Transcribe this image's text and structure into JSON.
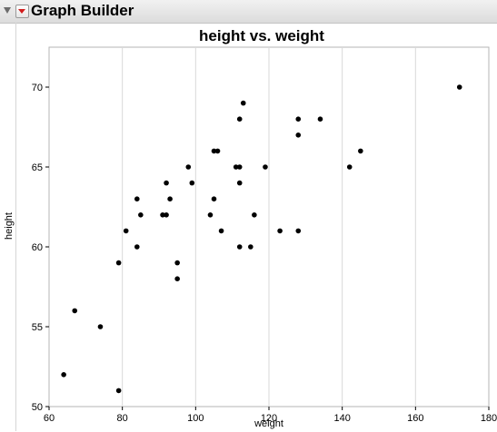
{
  "app": {
    "title": "Graph Builder"
  },
  "chart_data": {
    "type": "scatter",
    "title": "height vs. weight",
    "xlabel": "weight",
    "ylabel": "height",
    "xlim": [
      60,
      180
    ],
    "ylim": [
      50,
      72.5
    ],
    "xticks": [
      60,
      80,
      100,
      120,
      140,
      160,
      180
    ],
    "yticks": [
      50,
      55,
      60,
      65,
      70
    ],
    "grid": {
      "vertical": true,
      "horizontal": false
    },
    "point_color": "#000000",
    "points": [
      {
        "x": 64,
        "y": 52
      },
      {
        "x": 67,
        "y": 56
      },
      {
        "x": 74,
        "y": 55
      },
      {
        "x": 79,
        "y": 51
      },
      {
        "x": 79,
        "y": 59
      },
      {
        "x": 81,
        "y": 61
      },
      {
        "x": 84,
        "y": 63
      },
      {
        "x": 84,
        "y": 60
      },
      {
        "x": 85,
        "y": 62
      },
      {
        "x": 91,
        "y": 62
      },
      {
        "x": 92,
        "y": 64
      },
      {
        "x": 92,
        "y": 62
      },
      {
        "x": 93,
        "y": 63
      },
      {
        "x": 95,
        "y": 59
      },
      {
        "x": 95,
        "y": 58
      },
      {
        "x": 98,
        "y": 65
      },
      {
        "x": 99,
        "y": 64
      },
      {
        "x": 104,
        "y": 62
      },
      {
        "x": 105,
        "y": 66
      },
      {
        "x": 105,
        "y": 63
      },
      {
        "x": 106,
        "y": 66
      },
      {
        "x": 107,
        "y": 61
      },
      {
        "x": 111,
        "y": 65
      },
      {
        "x": 112,
        "y": 65
      },
      {
        "x": 112,
        "y": 68
      },
      {
        "x": 112,
        "y": 64
      },
      {
        "x": 112,
        "y": 60
      },
      {
        "x": 113,
        "y": 69
      },
      {
        "x": 115,
        "y": 60
      },
      {
        "x": 116,
        "y": 62
      },
      {
        "x": 119,
        "y": 65
      },
      {
        "x": 123,
        "y": 61
      },
      {
        "x": 128,
        "y": 68
      },
      {
        "x": 128,
        "y": 67
      },
      {
        "x": 128,
        "y": 61
      },
      {
        "x": 134,
        "y": 68
      },
      {
        "x": 142,
        "y": 65
      },
      {
        "x": 145,
        "y": 66
      },
      {
        "x": 172,
        "y": 70
      }
    ]
  }
}
